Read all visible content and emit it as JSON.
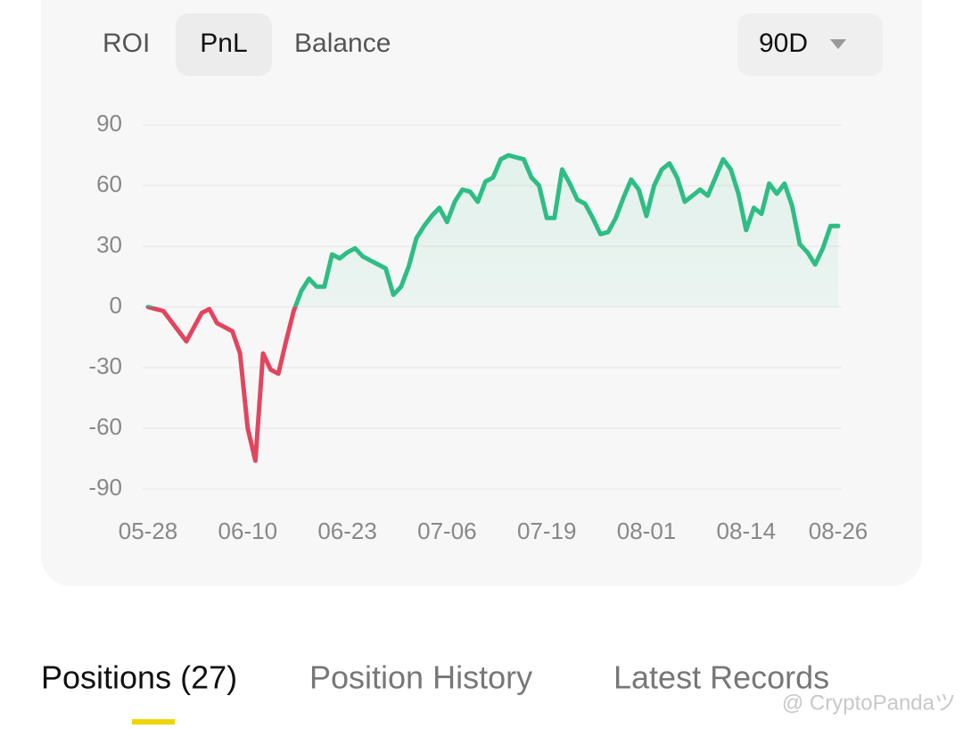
{
  "tabs": [
    "ROI",
    "PnL",
    "Balance"
  ],
  "period": "90D",
  "chart_data": {
    "type": "line",
    "x": [
      "05-28",
      "05-29",
      "05-30",
      "05-31",
      "06-01",
      "06-02",
      "06-03",
      "06-04",
      "06-05",
      "06-06",
      "06-07",
      "06-08",
      "06-09",
      "06-10",
      "06-11",
      "06-12",
      "06-13",
      "06-14",
      "06-15",
      "06-16",
      "06-17",
      "06-18",
      "06-19",
      "06-20",
      "06-21",
      "06-22",
      "06-23",
      "06-24",
      "06-25",
      "06-26",
      "06-27",
      "06-28",
      "06-29",
      "06-30",
      "07-01",
      "07-02",
      "07-03",
      "07-04",
      "07-05",
      "07-06",
      "07-07",
      "07-08",
      "07-09",
      "07-10",
      "07-11",
      "07-12",
      "07-13",
      "07-14",
      "07-15",
      "07-16",
      "07-17",
      "07-18",
      "07-19",
      "07-20",
      "07-21",
      "07-22",
      "07-23",
      "07-24",
      "07-25",
      "07-26",
      "07-27",
      "07-28",
      "07-29",
      "07-30",
      "07-31",
      "08-01",
      "08-02",
      "08-03",
      "08-04",
      "08-05",
      "08-06",
      "08-07",
      "08-08",
      "08-09",
      "08-10",
      "08-11",
      "08-12",
      "08-13",
      "08-14",
      "08-15",
      "08-16",
      "08-17",
      "08-18",
      "08-19",
      "08-20",
      "08-21",
      "08-22",
      "08-23",
      "08-24",
      "08-25",
      "08-26"
    ],
    "values": [
      0,
      -1,
      -2,
      -7,
      -12,
      -17,
      -10,
      -3,
      -1,
      -8,
      -10,
      -12,
      -23,
      -60,
      -76,
      -23,
      -31,
      -33,
      -17,
      -2,
      8,
      14,
      10,
      10,
      26,
      24,
      27,
      29,
      25,
      23,
      21,
      19,
      6,
      10,
      20,
      34,
      40,
      45,
      49,
      42,
      52,
      58,
      57,
      52,
      62,
      64,
      73,
      75,
      74,
      73,
      64,
      60,
      44,
      44,
      68,
      61,
      53,
      51,
      44,
      36,
      37,
      44,
      54,
      63,
      58,
      45,
      60,
      68,
      71,
      64,
      52,
      55,
      58,
      55,
      64,
      73,
      68,
      56,
      38,
      49,
      46,
      61,
      56,
      61,
      50,
      31,
      27,
      21,
      29,
      40,
      40
    ],
    "color_positive": "#2ebd85",
    "color_negative": "#e2455f",
    "ylim": [
      -90,
      90
    ],
    "yticks": [
      -90,
      -60,
      -30,
      0,
      30,
      60,
      90
    ],
    "xticks": [
      "05-28",
      "06-10",
      "06-23",
      "07-06",
      "07-19",
      "08-01",
      "08-14",
      "08-26"
    ],
    "grid": true
  },
  "bottom_tabs": [
    "Positions (27)",
    "Position History",
    "Latest Records"
  ],
  "watermark": "@ CryptoPandaツ"
}
